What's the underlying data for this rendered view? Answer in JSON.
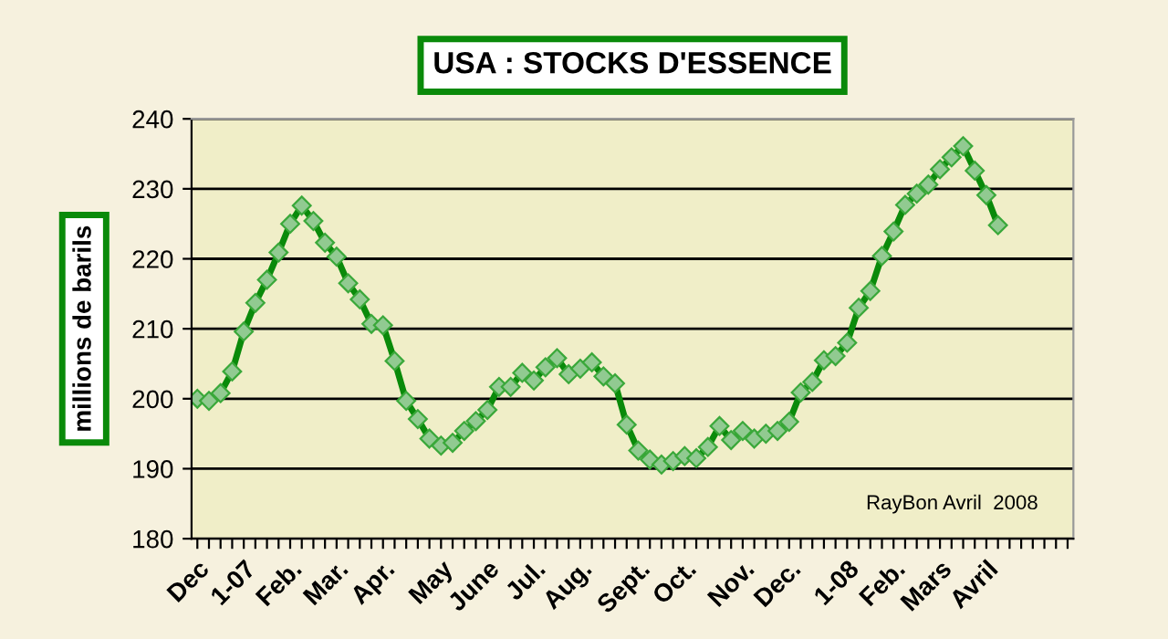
{
  "chart_data": {
    "type": "line",
    "title": "USA : STOCKS D'ESSENCE",
    "ylabel": "millions de barils",
    "categories": [
      "Dec",
      null,
      null,
      null,
      "1-07",
      null,
      null,
      null,
      "Feb.",
      null,
      null,
      null,
      "Mar.",
      null,
      null,
      null,
      "Apr.",
      null,
      null,
      null,
      null,
      "May",
      null,
      null,
      null,
      "June",
      null,
      null,
      null,
      "Jul.",
      null,
      null,
      null,
      "Aug.",
      null,
      null,
      null,
      null,
      "Sept.",
      null,
      null,
      null,
      "Oct.",
      null,
      null,
      null,
      null,
      "Nov.",
      null,
      null,
      null,
      "Dec.",
      null,
      null,
      null,
      null,
      "1-08",
      null,
      null,
      null,
      "Feb.",
      null,
      null,
      null,
      "Mars",
      null,
      null,
      null,
      "Avril",
      null,
      null,
      null,
      null,
      null,
      null,
      null
    ],
    "series": [
      {
        "color": "#0a8a0a",
        "values": [
          200.0,
          199.7,
          200.8,
          203.9,
          209.6,
          213.7,
          217.0,
          220.9,
          225.0,
          227.6,
          225.4,
          222.3,
          220.3,
          216.5,
          214.2,
          210.7,
          210.5,
          205.4,
          199.7,
          197.1,
          194.3,
          193.3,
          193.7,
          195.4,
          196.8,
          198.4,
          201.7,
          201.7,
          203.7,
          202.6,
          204.5,
          205.8,
          203.5,
          204.3,
          205.2,
          203.2,
          202.2,
          196.3,
          192.6,
          191.3,
          190.6,
          191.1,
          191.8,
          191.5,
          193.1,
          196.1,
          194.1,
          195.4,
          194.3,
          195.0,
          195.4,
          196.7,
          200.9,
          202.4,
          205.5,
          206.1,
          208.0,
          213.0,
          215.4,
          220.4,
          223.9,
          227.7,
          229.3,
          230.6,
          232.8,
          234.5,
          236.1,
          232.6,
          229.1,
          224.8,
          null,
          null,
          null,
          null,
          null,
          null
        ]
      }
    ],
    "ylim": [
      180,
      240
    ],
    "yticks": [
      180,
      190,
      200,
      210,
      220,
      230,
      240
    ],
    "grid": "y",
    "marker": "diamond",
    "line_style": "solid",
    "legend": false,
    "annotations": [
      {
        "text": "RayBon Avril  2008"
      }
    ]
  }
}
